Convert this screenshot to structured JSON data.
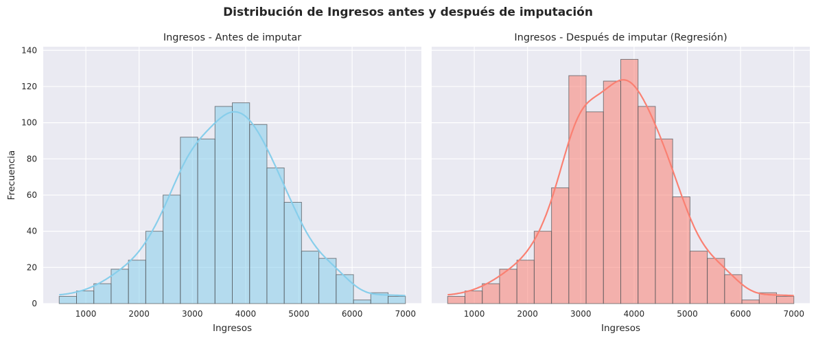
{
  "figure_title": "Distribución de Ingresos antes y después de imputación",
  "chart_data": [
    {
      "type": "histogram",
      "title": "Ingresos - Antes de imputar",
      "xlabel": "Ingresos",
      "ylabel": "Frecuencia",
      "xlim": [
        200,
        7300
      ],
      "ylim": [
        0,
        142
      ],
      "xticks": [
        1000,
        2000,
        3000,
        4000,
        5000,
        6000,
        7000
      ],
      "yticks": [
        0,
        20,
        40,
        60,
        80,
        100,
        120,
        140
      ],
      "bin_edges": [
        500,
        825,
        1150,
        1475,
        1800,
        2125,
        2450,
        2775,
        3100,
        3425,
        3750,
        4075,
        4400,
        4725,
        5050,
        5375,
        5700,
        6025,
        6350,
        6675,
        7000
      ],
      "counts": [
        4,
        7,
        11,
        19,
        24,
        40,
        60,
        92,
        91,
        109,
        111,
        99,
        75,
        56,
        29,
        25,
        16,
        2,
        6,
        4
      ],
      "kde": true,
      "bar_color": "#87ceeb",
      "line_color": "#87ceeb",
      "grid": true
    },
    {
      "type": "histogram",
      "title": "Ingresos - Después de imputar (Regresión)",
      "xlabel": "Ingresos",
      "ylabel": "",
      "xlim": [
        200,
        7300
      ],
      "ylim": [
        0,
        142
      ],
      "xticks": [
        1000,
        2000,
        3000,
        4000,
        5000,
        6000,
        7000
      ],
      "yticks": [
        0,
        20,
        40,
        60,
        80,
        100,
        120,
        140
      ],
      "bin_edges": [
        500,
        825,
        1150,
        1475,
        1800,
        2125,
        2450,
        2775,
        3100,
        3425,
        3750,
        4075,
        4400,
        4725,
        5050,
        5375,
        5700,
        6025,
        6350,
        6675,
        7000
      ],
      "counts": [
        4,
        7,
        11,
        19,
        24,
        40,
        64,
        126,
        106,
        123,
        135,
        109,
        91,
        59,
        29,
        25,
        16,
        2,
        6,
        4
      ],
      "kde": true,
      "bar_color": "#fa8072",
      "line_color": "#fa8072",
      "grid": true
    }
  ]
}
